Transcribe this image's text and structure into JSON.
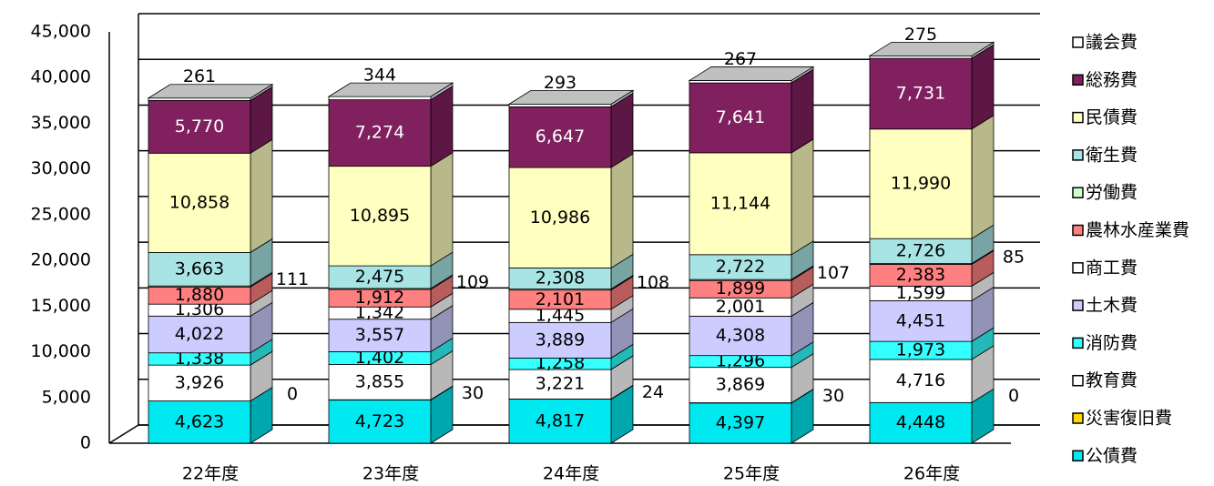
{
  "chart_data": {
    "type": "bar",
    "stacked": true,
    "three_d": true,
    "categories": [
      "22年度",
      "23年度",
      "24年度",
      "25年度",
      "26年度"
    ],
    "ylim": [
      0,
      45000
    ],
    "yticks": [
      0,
      {
        "value": 5000,
        "label": "5,000"
      },
      {
        "value": 10000,
        "label": "10,000"
      },
      {
        "value": 15000,
        "label": "15,000"
      },
      {
        "value": 20000,
        "label": "20,000"
      },
      {
        "value": 25000,
        "label": "25,000"
      },
      {
        "value": 30000,
        "label": "30,000"
      },
      {
        "value": 35000,
        "label": "35,000"
      },
      {
        "value": 40000,
        "label": "40,000"
      },
      {
        "value": 45000,
        "label": "45,000"
      }
    ],
    "grid": true,
    "legend": "right",
    "series": [
      {
        "name": "公債費",
        "color": "#00e8f0",
        "values": [
          4623,
          4723,
          4817,
          4397,
          4448
        ],
        "value_labels": [
          "4,623",
          "4,723",
          "4,817",
          "4,397",
          "4,448"
        ]
      },
      {
        "name": "災害復旧費",
        "color": "#ffd700",
        "values": [
          0,
          30,
          24,
          30,
          0
        ],
        "value_labels": [
          "0",
          "30",
          "24",
          "30",
          "0"
        ]
      },
      {
        "name": "教育費",
        "color": "#ffffff",
        "values": [
          3926,
          3855,
          3221,
          3869,
          4716
        ],
        "value_labels": [
          "3,926",
          "3,855",
          "3,221",
          "3,869",
          "4,716"
        ]
      },
      {
        "name": "消防費",
        "color": "#33ffff",
        "values": [
          1338,
          1402,
          1258,
          1296,
          1973
        ],
        "value_labels": [
          "1,338",
          "1,402",
          "1,258",
          "1,296",
          "1,973"
        ]
      },
      {
        "name": "土木費",
        "color": "#ccccff",
        "values": [
          4022,
          3557,
          3889,
          4308,
          4451
        ],
        "value_labels": [
          "4,022",
          "3,557",
          "3,889",
          "4,308",
          "4,451"
        ]
      },
      {
        "name": "商工費",
        "color": "#ffffff",
        "values": [
          1306,
          1342,
          1445,
          2001,
          1599
        ],
        "value_labels": [
          "1,306",
          "1,342",
          "1,445",
          "2,001",
          "1,599"
        ]
      },
      {
        "name": "農林水産業費",
        "color": "#ff8080",
        "values": [
          1880,
          1912,
          2101,
          1899,
          2383
        ],
        "value_labels": [
          "1,880",
          "1,912",
          "2,101",
          "1,899",
          "2,383"
        ]
      },
      {
        "name": "労働費",
        "color": "#ccffcc",
        "values": [
          111,
          109,
          108,
          107,
          85
        ],
        "value_labels": [
          "111",
          "109",
          "108",
          "107",
          "85"
        ]
      },
      {
        "name": "衛生費",
        "color": "#a8e4e4",
        "values": [
          3663,
          2475,
          2308,
          2722,
          2726
        ],
        "value_labels": [
          "3,663",
          "2,475",
          "2,308",
          "2,722",
          "2,726"
        ]
      },
      {
        "name": "民債費",
        "color": "#ffffc0",
        "values": [
          10858,
          10895,
          10986,
          11144,
          11990
        ],
        "value_labels": [
          "10,858",
          "10,895",
          "10,986",
          "11,144",
          "11,990"
        ]
      },
      {
        "name": "総務費",
        "color": "#80205f",
        "values": [
          5770,
          7274,
          6647,
          7641,
          7731
        ],
        "value_labels": [
          "5,770",
          "7,274",
          "6,647",
          "7,641",
          "7,731"
        ]
      },
      {
        "name": "議会費",
        "color": "#ffffff",
        "values": [
          261,
          344,
          293,
          267,
          275
        ],
        "value_labels": [
          "261",
          "344",
          "293",
          "267",
          "275"
        ]
      }
    ]
  }
}
